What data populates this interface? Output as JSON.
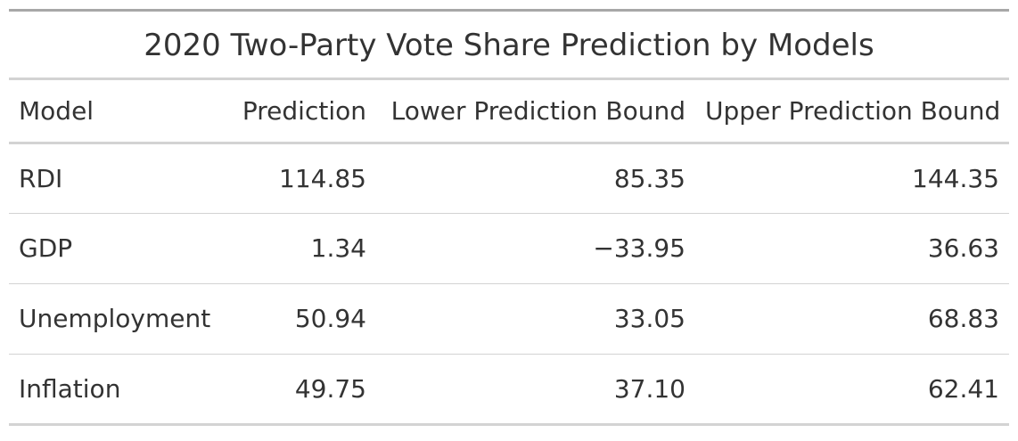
{
  "table": {
    "title": "2020 Two-Party Vote Share Prediction by Models",
    "columns": [
      "Model",
      "Prediction",
      "Lower Prediction Bound",
      "Upper Prediction Bound"
    ],
    "rows": [
      {
        "model": "RDI",
        "prediction": "114.85",
        "lower": "85.35",
        "upper": "144.35"
      },
      {
        "model": "GDP",
        "prediction": "1.34",
        "lower": "−33.95",
        "upper": "36.63"
      },
      {
        "model": "Unemployment",
        "prediction": "50.94",
        "lower": "33.05",
        "upper": "68.83"
      },
      {
        "model": "Inflation",
        "prediction": "49.75",
        "lower": "37.10",
        "upper": "62.41"
      }
    ]
  }
}
